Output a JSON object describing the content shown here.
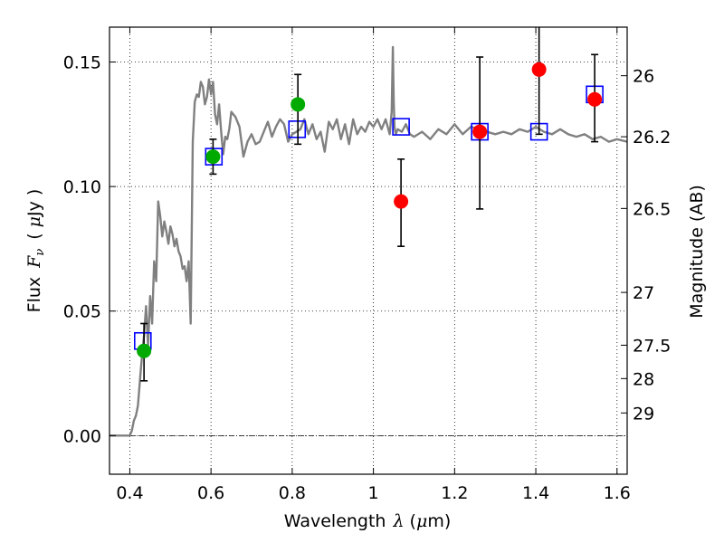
{
  "chart_data": {
    "type": "scatter",
    "title": "",
    "xlabel": "Wavelength",
    "xlabel_symbol": "λ",
    "xlabel_unit_open": "(",
    "xlabel_unit_symbol": "μ",
    "xlabel_unit_rest": "m)",
    "ylabel": "Flux",
    "ylabel_symbol": "F",
    "ylabel_subscript": "ν",
    "ylabel_unit_open": "(",
    "ylabel_unit_symbol": "μ",
    "ylabel_unit_rest": "Jy )",
    "y2label": "Magnitude (AB)",
    "xlim": [
      0.35,
      1.625
    ],
    "ylim": [
      -0.0155,
      0.164
    ],
    "grid": true,
    "reference_line_y": 0.0,
    "x_ticks": [
      {
        "value": 0.4,
        "label": "0.4"
      },
      {
        "value": 0.6,
        "label": "0.6"
      },
      {
        "value": 0.8,
        "label": "0.8"
      },
      {
        "value": 1.0,
        "label": "1"
      },
      {
        "value": 1.2,
        "label": "1.2"
      },
      {
        "value": 1.4,
        "label": "1.4"
      },
      {
        "value": 1.6,
        "label": "1.6"
      }
    ],
    "y_ticks": [
      {
        "value": 0.0,
        "label": "0.00"
      },
      {
        "value": 0.05,
        "label": "0.05"
      },
      {
        "value": 0.1,
        "label": "0.10"
      },
      {
        "value": 0.15,
        "label": "0.15"
      }
    ],
    "y2_ticks": [
      {
        "flux": 0.1445,
        "label": "26"
      },
      {
        "flux": 0.12,
        "label": "26.2"
      },
      {
        "flux": 0.0912,
        "label": "26.5"
      },
      {
        "flux": 0.0575,
        "label": "27"
      },
      {
        "flux": 0.0363,
        "label": "27.5"
      },
      {
        "flux": 0.0229,
        "label": "28"
      },
      {
        "flux": 0.0091,
        "label": "29"
      }
    ],
    "series": [
      {
        "style": "line",
        "color": "#808080",
        "x": [
          0.35,
          0.4,
          0.405,
          0.41,
          0.415,
          0.42,
          0.425,
          0.43,
          0.435,
          0.44,
          0.445,
          0.45,
          0.455,
          0.46,
          0.465,
          0.47,
          0.475,
          0.48,
          0.485,
          0.49,
          0.495,
          0.5,
          0.505,
          0.51,
          0.515,
          0.52,
          0.525,
          0.53,
          0.535,
          0.54,
          0.545,
          0.55,
          0.555,
          0.56,
          0.565,
          0.57,
          0.575,
          0.58,
          0.585,
          0.59,
          0.595,
          0.6,
          0.605,
          0.61,
          0.615,
          0.62,
          0.625,
          0.63,
          0.635,
          0.64,
          0.645,
          0.65,
          0.66,
          0.67,
          0.68,
          0.69,
          0.7,
          0.71,
          0.72,
          0.73,
          0.74,
          0.75,
          0.76,
          0.77,
          0.78,
          0.79,
          0.8,
          0.81,
          0.82,
          0.83,
          0.84,
          0.85,
          0.86,
          0.87,
          0.88,
          0.89,
          0.9,
          0.91,
          0.92,
          0.93,
          0.94,
          0.95,
          0.96,
          0.97,
          0.98,
          0.99,
          1.0,
          1.01,
          1.02,
          1.03,
          1.04,
          1.045,
          1.048,
          1.05,
          1.052,
          1.055,
          1.06,
          1.07,
          1.08,
          1.09,
          1.1,
          1.12,
          1.14,
          1.16,
          1.18,
          1.2,
          1.22,
          1.24,
          1.26,
          1.28,
          1.3,
          1.32,
          1.34,
          1.36,
          1.38,
          1.4,
          1.42,
          1.44,
          1.46,
          1.48,
          1.5,
          1.52,
          1.54,
          1.56,
          1.58,
          1.6,
          1.625
        ],
        "y": [
          0.0,
          0.0,
          0.002,
          0.006,
          0.008,
          0.012,
          0.022,
          0.032,
          0.04,
          0.052,
          0.036,
          0.056,
          0.045,
          0.07,
          0.062,
          0.094,
          0.088,
          0.08,
          0.086,
          0.082,
          0.077,
          0.084,
          0.081,
          0.076,
          0.079,
          0.074,
          0.072,
          0.067,
          0.068,
          0.062,
          0.07,
          0.045,
          0.118,
          0.134,
          0.137,
          0.136,
          0.142,
          0.14,
          0.133,
          0.136,
          0.143,
          0.137,
          0.142,
          0.129,
          0.125,
          0.133,
          0.122,
          0.113,
          0.12,
          0.119,
          0.123,
          0.13,
          0.128,
          0.124,
          0.112,
          0.118,
          0.121,
          0.117,
          0.118,
          0.122,
          0.126,
          0.12,
          0.124,
          0.127,
          0.125,
          0.118,
          0.121,
          0.122,
          0.123,
          0.127,
          0.121,
          0.125,
          0.119,
          0.122,
          0.114,
          0.126,
          0.123,
          0.127,
          0.119,
          0.125,
          0.117,
          0.127,
          0.121,
          0.124,
          0.122,
          0.126,
          0.124,
          0.127,
          0.123,
          0.127,
          0.121,
          0.13,
          0.156,
          0.135,
          0.124,
          0.121,
          0.123,
          0.122,
          0.125,
          0.121,
          0.12,
          0.122,
          0.119,
          0.123,
          0.121,
          0.125,
          0.121,
          0.124,
          0.123,
          0.122,
          0.121,
          0.122,
          0.121,
          0.123,
          0.122,
          0.124,
          0.122,
          0.121,
          0.123,
          0.121,
          0.12,
          0.121,
          0.119,
          0.12,
          0.118,
          0.119,
          0.118
        ]
      },
      {
        "style": "open-square",
        "color": "#0000ff",
        "x": [
          0.432,
          0.607,
          0.812,
          1.068,
          1.262,
          1.408,
          1.545
        ],
        "y": [
          0.038,
          0.112,
          0.123,
          0.124,
          0.122,
          0.122,
          0.137
        ]
      },
      {
        "style": "filled-circle",
        "color": "#00aa00",
        "x": [
          0.435,
          0.605,
          0.814
        ],
        "y": [
          0.034,
          0.112,
          0.133
        ],
        "yerr_low": [
          0.022,
          0.105,
          0.117
        ],
        "yerr_high": [
          0.045,
          0.119,
          0.145
        ]
      },
      {
        "style": "filled-circle",
        "color": "#ff0000",
        "x": [
          1.068,
          1.262,
          1.408,
          1.545
        ],
        "y": [
          0.094,
          0.122,
          0.147,
          0.135
        ],
        "yerr_low": [
          0.076,
          0.091,
          0.121,
          0.118
        ],
        "yerr_high": [
          0.111,
          0.152,
          0.172,
          0.153
        ]
      }
    ]
  }
}
